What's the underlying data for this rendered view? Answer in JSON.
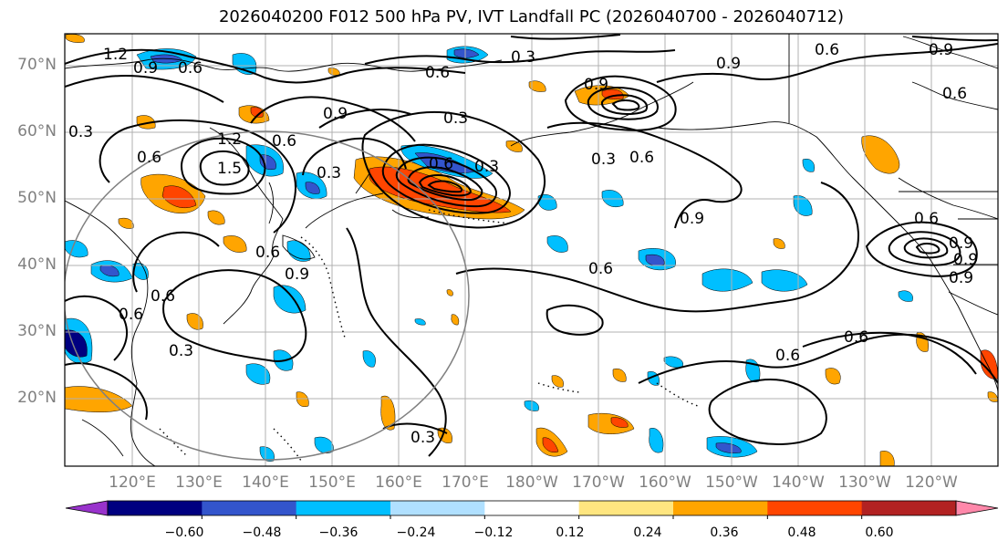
{
  "title": "2026040200 F012 500 hPa PV, IVT Landfall PC (2026040700 - 2026040712)",
  "lat_labels": [
    "70°N",
    "60°N",
    "50°N",
    "40°N",
    "30°N",
    "20°N"
  ],
  "lon_labels": [
    "120°E",
    "130°E",
    "140°E",
    "150°E",
    "160°E",
    "170°E",
    "180°W",
    "170°W",
    "160°W",
    "150°W",
    "140°W",
    "130°W",
    "120°W"
  ],
  "colorbar": {
    "ticks": [
      "−0.60",
      "−0.48",
      "−0.36",
      "−0.24",
      "−0.12",
      "0.12",
      "0.24",
      "0.36",
      "0.48",
      "0.60"
    ],
    "colors": [
      "#9933cc",
      "#000080",
      "#3355cc",
      "#00bfff",
      "#b0e0ff",
      "#ffffff",
      "#ffe680",
      "#ffa500",
      "#ff4500",
      "#b22222",
      "#ff88aa"
    ]
  },
  "contour_labels": [
    "1.2",
    "0.9",
    "0.6",
    "0.3",
    "0.6",
    "0.9",
    "0.6",
    "0.9",
    "0.6",
    "1.2",
    "1.5",
    "0.6",
    "0.3",
    "0.9",
    "0.6",
    "0.3",
    "0.9",
    "0.6",
    "0.3",
    "0.6",
    "0.9",
    "0.6",
    "0.9",
    "0.6",
    "0.9",
    "0.6",
    "0.3",
    "0.6",
    "0.9",
    "0.6",
    "0.3",
    "0.3",
    "0.6",
    "0.6",
    "0.9",
    "0.3"
  ]
}
